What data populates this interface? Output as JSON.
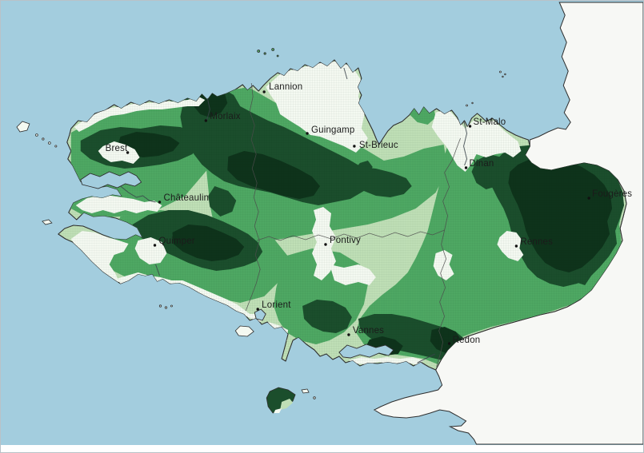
{
  "map": {
    "type": "choropleth-contour-map",
    "region_shown": "Bretagne peninsula with surrounding coastline",
    "colors": {
      "sea": "#a3cdde",
      "outside_region_land": "#f7f8f5",
      "coastline": "#2e2e2e",
      "department_border": "#4b4b4b",
      "choropleth_classes": [
        "#f4f9f1",
        "#bfdfb6",
        "#4ea863",
        "#1b4e2c",
        "#0e331b"
      ]
    },
    "cities": [
      {
        "name": "Lannion",
        "dot": [
          330,
          114
        ],
        "label": [
          336,
          111
        ]
      },
      {
        "name": "Morlaix",
        "dot": [
          257,
          150
        ],
        "label": [
          262,
          148
        ]
      },
      {
        "name": "Brest",
        "dot": [
          159,
          190
        ],
        "label": [
          131,
          188
        ]
      },
      {
        "name": "Guingamp",
        "dot": [
          384,
          166
        ],
        "label": [
          389,
          165
        ]
      },
      {
        "name": "St-Brieuc",
        "dot": [
          443,
          182
        ],
        "label": [
          449,
          184
        ]
      },
      {
        "name": "St-Malo",
        "dot": [
          588,
          157
        ],
        "label": [
          592,
          155
        ]
      },
      {
        "name": "Dinan",
        "dot": [
          583,
          209
        ],
        "label": [
          587,
          207
        ]
      },
      {
        "name": "Châteaulin",
        "dot": [
          199,
          252
        ],
        "label": [
          204,
          250
        ]
      },
      {
        "name": "Quimper",
        "dot": [
          193,
          306
        ],
        "label": [
          198,
          304
        ]
      },
      {
        "name": "Pontivy",
        "dot": [
          407,
          305
        ],
        "label": [
          412,
          303
        ]
      },
      {
        "name": "Rennes",
        "dot": [
          646,
          307
        ],
        "label": [
          651,
          305
        ]
      },
      {
        "name": "Fougères",
        "dot": [
          737,
          247
        ],
        "label": [
          741,
          245
        ]
      },
      {
        "name": "Lorient",
        "dot": [
          322,
          386
        ],
        "label": [
          327,
          384
        ]
      },
      {
        "name": "Vannes",
        "dot": [
          436,
          418
        ],
        "label": [
          441,
          416
        ]
      },
      {
        "name": "Redon",
        "dot": [
          562,
          429
        ],
        "label": [
          566,
          428
        ]
      }
    ]
  }
}
